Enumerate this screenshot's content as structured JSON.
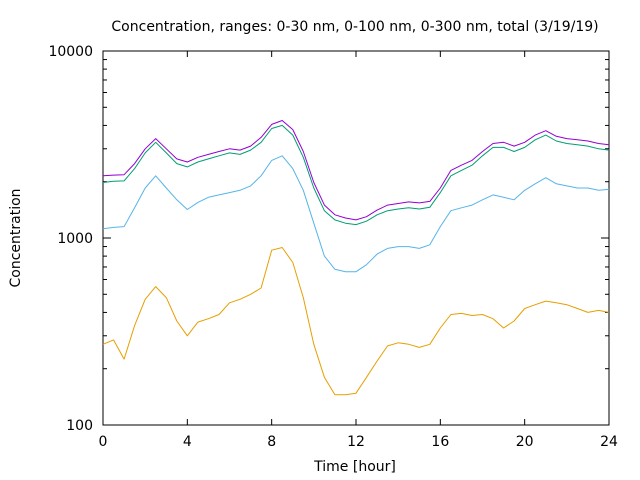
{
  "chart_data": {
    "type": "line",
    "title": "Concentration, ranges: 0-30 nm, 0-100 nm, 0-300 nm, total (3/19/19)",
    "xlabel": "Time [hour]",
    "ylabel": "Concentration",
    "xlim": [
      0,
      24
    ],
    "ylim": [
      100,
      10000
    ],
    "yscale": "log",
    "grid": false,
    "x_ticks": [
      0,
      4,
      8,
      12,
      16,
      20,
      24
    ],
    "y_ticks": [
      100,
      1000,
      10000
    ],
    "x_tick_labels": [
      "0",
      "4",
      "8",
      "12",
      "16",
      "20",
      "24"
    ],
    "y_tick_labels": [
      "100",
      "1000",
      "10000"
    ],
    "series": [
      {
        "color": "#e69f00",
        "x": [
          0,
          0.5,
          1,
          1.5,
          2,
          2.5,
          3,
          3.5,
          4,
          4.5,
          5,
          5.5,
          6,
          6.5,
          7,
          7.5,
          8,
          8.5,
          9,
          9.5,
          10,
          10.5,
          11,
          11.5,
          12,
          12.5,
          13,
          13.5,
          14,
          14.5,
          15,
          15.5,
          16,
          16.5,
          17,
          17.5,
          18,
          18.5,
          19,
          19.5,
          20,
          20.5,
          21,
          21.5,
          22,
          22.5,
          23,
          23.5,
          24
        ],
        "values": [
          270,
          285,
          225,
          340,
          470,
          550,
          480,
          360,
          300,
          355,
          370,
          390,
          450,
          470,
          500,
          540,
          860,
          890,
          740,
          480,
          270,
          180,
          145,
          145,
          148,
          180,
          220,
          265,
          275,
          270,
          260,
          270,
          330,
          390,
          395,
          385,
          390,
          370,
          330,
          360,
          420,
          440,
          460,
          450,
          440,
          420,
          400,
          410,
          400
        ]
      },
      {
        "color": "#56b4e9",
        "x": [
          0,
          0.5,
          1,
          1.5,
          2,
          2.5,
          3,
          3.5,
          4,
          4.5,
          5,
          5.5,
          6,
          6.5,
          7,
          7.5,
          8,
          8.5,
          9,
          9.5,
          10,
          10.5,
          11,
          11.5,
          12,
          12.5,
          13,
          13.5,
          14,
          14.5,
          15,
          15.5,
          16,
          16.5,
          17,
          17.5,
          18,
          18.5,
          19,
          19.5,
          20,
          20.5,
          21,
          21.5,
          22,
          22.5,
          23,
          23.5,
          24
        ],
        "values": [
          1120,
          1140,
          1150,
          1450,
          1850,
          2150,
          1850,
          1600,
          1420,
          1550,
          1650,
          1700,
          1750,
          1800,
          1900,
          2150,
          2600,
          2750,
          2350,
          1800,
          1200,
          800,
          680,
          660,
          660,
          720,
          820,
          880,
          900,
          900,
          880,
          920,
          1150,
          1400,
          1450,
          1500,
          1600,
          1700,
          1650,
          1600,
          1800,
          1950,
          2100,
          1950,
          1900,
          1850,
          1850,
          1800,
          1820
        ]
      },
      {
        "color": "#009e73",
        "x": [
          0,
          0.5,
          1,
          1.5,
          2,
          2.5,
          3,
          3.5,
          4,
          4.5,
          5,
          5.5,
          6,
          6.5,
          7,
          7.5,
          8,
          8.5,
          9,
          9.5,
          10,
          10.5,
          11,
          11.5,
          12,
          12.5,
          13,
          13.5,
          14,
          14.5,
          15,
          15.5,
          16,
          16.5,
          17,
          17.5,
          18,
          18.5,
          19,
          19.5,
          20,
          20.5,
          21,
          21.5,
          22,
          22.5,
          23,
          23.5,
          24
        ],
        "values": [
          1980,
          2010,
          2020,
          2350,
          2850,
          3250,
          2850,
          2500,
          2400,
          2550,
          2650,
          2750,
          2850,
          2800,
          2950,
          3250,
          3850,
          4000,
          3550,
          2700,
          1850,
          1400,
          1250,
          1200,
          1180,
          1230,
          1330,
          1400,
          1430,
          1450,
          1430,
          1460,
          1750,
          2150,
          2300,
          2450,
          2750,
          3050,
          3050,
          2900,
          3050,
          3350,
          3550,
          3300,
          3200,
          3150,
          3100,
          3000,
          2950
        ]
      },
      {
        "color": "#9400d3",
        "x": [
          0,
          0.5,
          1,
          1.5,
          2,
          2.5,
          3,
          3.5,
          4,
          4.5,
          5,
          5.5,
          6,
          6.5,
          7,
          7.5,
          8,
          8.5,
          9,
          9.5,
          10,
          10.5,
          11,
          11.5,
          12,
          12.5,
          13,
          13.5,
          14,
          14.5,
          15,
          15.5,
          16,
          16.5,
          17,
          17.5,
          18,
          18.5,
          19,
          19.5,
          20,
          20.5,
          21,
          21.5,
          22,
          22.5,
          23,
          23.5,
          24
        ],
        "values": [
          2150,
          2170,
          2180,
          2500,
          3000,
          3400,
          3000,
          2650,
          2550,
          2700,
          2800,
          2900,
          3000,
          2950,
          3100,
          3450,
          4050,
          4250,
          3800,
          2900,
          1980,
          1500,
          1330,
          1280,
          1250,
          1300,
          1410,
          1500,
          1530,
          1560,
          1540,
          1570,
          1850,
          2300,
          2450,
          2600,
          2900,
          3200,
          3250,
          3100,
          3250,
          3550,
          3750,
          3500,
          3400,
          3350,
          3300,
          3200,
          3150
        ]
      }
    ]
  }
}
